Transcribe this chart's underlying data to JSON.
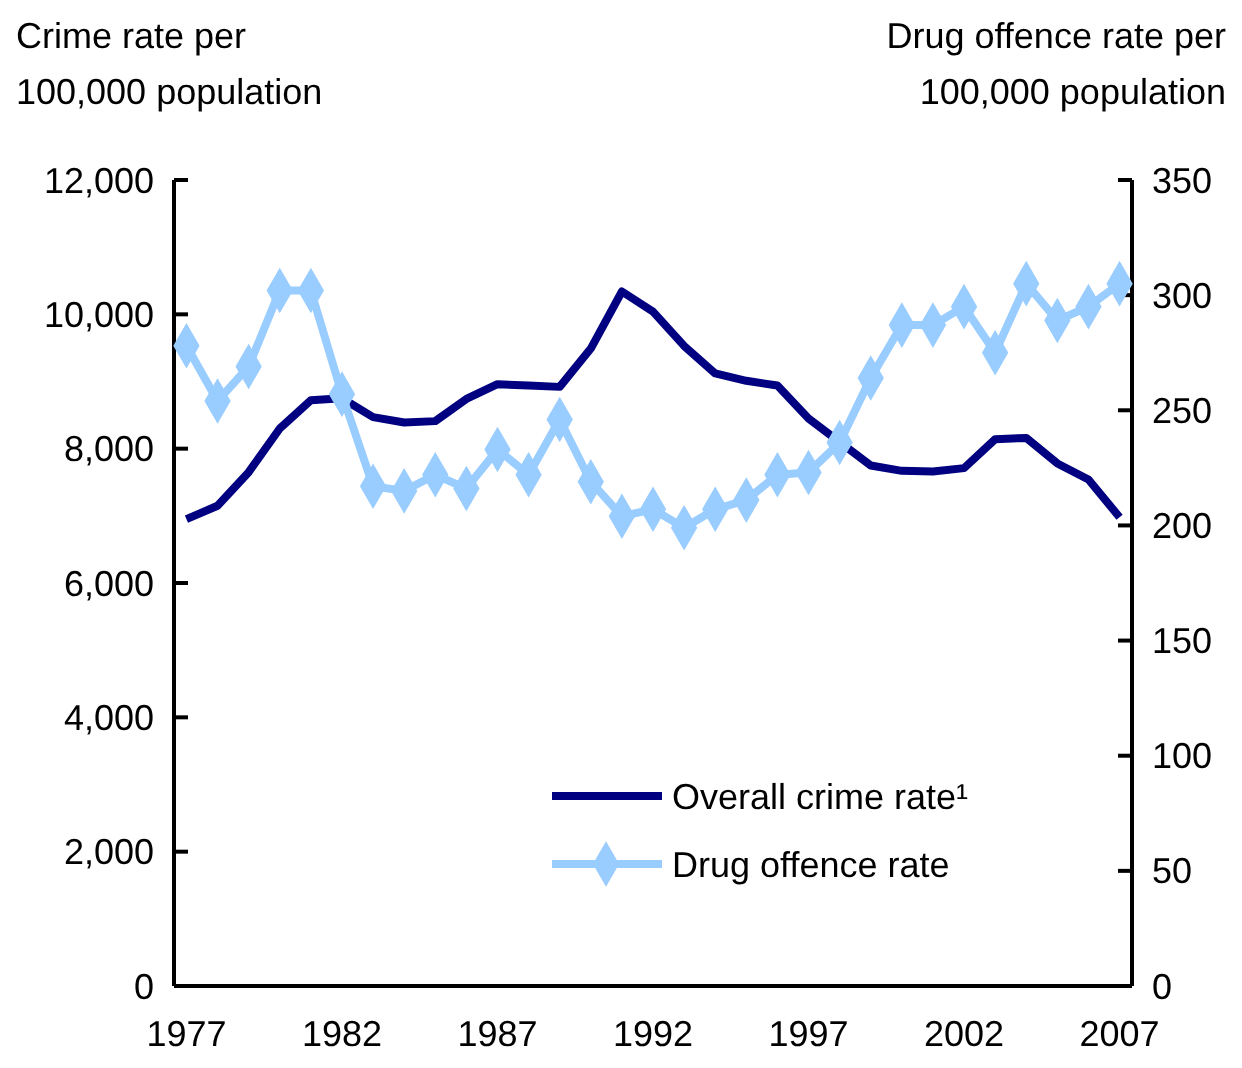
{
  "chart_data": {
    "type": "line",
    "ylabel": "Crime rate per\n100,000 population",
    "y2label": "Drug offence rate per\n100,000 population",
    "x": [
      1977,
      1978,
      1979,
      1980,
      1981,
      1982,
      1983,
      1984,
      1985,
      1986,
      1987,
      1988,
      1989,
      1990,
      1991,
      1992,
      1993,
      1994,
      1995,
      1996,
      1997,
      1998,
      1999,
      2000,
      2001,
      2002,
      2003,
      2004,
      2005,
      2006,
      2007
    ],
    "xlim": [
      1976.6,
      2007.4
    ],
    "xticks": [
      1977,
      1982,
      1987,
      1992,
      1997,
      2002,
      2007
    ],
    "ylim": [
      0,
      12000
    ],
    "yticks": [
      {
        "value": 0,
        "label": "0"
      },
      {
        "value": 2000,
        "label": "2,000"
      },
      {
        "value": 4000,
        "label": "4,000"
      },
      {
        "value": 6000,
        "label": "6,000"
      },
      {
        "value": 8000,
        "label": "8,000"
      },
      {
        "value": 10000,
        "label": "10,000"
      },
      {
        "value": 12000,
        "label": "12,000"
      }
    ],
    "y2lim": [
      0,
      350
    ],
    "y2ticks": [
      0,
      50,
      100,
      150,
      200,
      250,
      300,
      350
    ],
    "legend": "bottom right",
    "grid": false,
    "series": [
      {
        "name": "Overall crime rate¹",
        "color": "#000080",
        "marker": "none",
        "values": [
          6950,
          7150,
          7650,
          8300,
          8720,
          8750,
          8470,
          8390,
          8410,
          8740,
          8960,
          8940,
          8920,
          9490,
          10340,
          10040,
          9530,
          9120,
          9010,
          8940,
          8450,
          8100,
          7750,
          7670,
          7660,
          7710,
          8140,
          8160,
          7780,
          7540,
          6980
        ]
      },
      {
        "name": "Drug offence rate",
        "color": "#99ccff",
        "marker": "diamond",
        "axis": "y2",
        "values": [
          278,
          254,
          269,
          302,
          302,
          257,
          217,
          215,
          222,
          216,
          233,
          222,
          246,
          219,
          204,
          207,
          199,
          207,
          211,
          222,
          223,
          236,
          264,
          287,
          287,
          295,
          275,
          305,
          289,
          295,
          305
        ]
      }
    ]
  }
}
